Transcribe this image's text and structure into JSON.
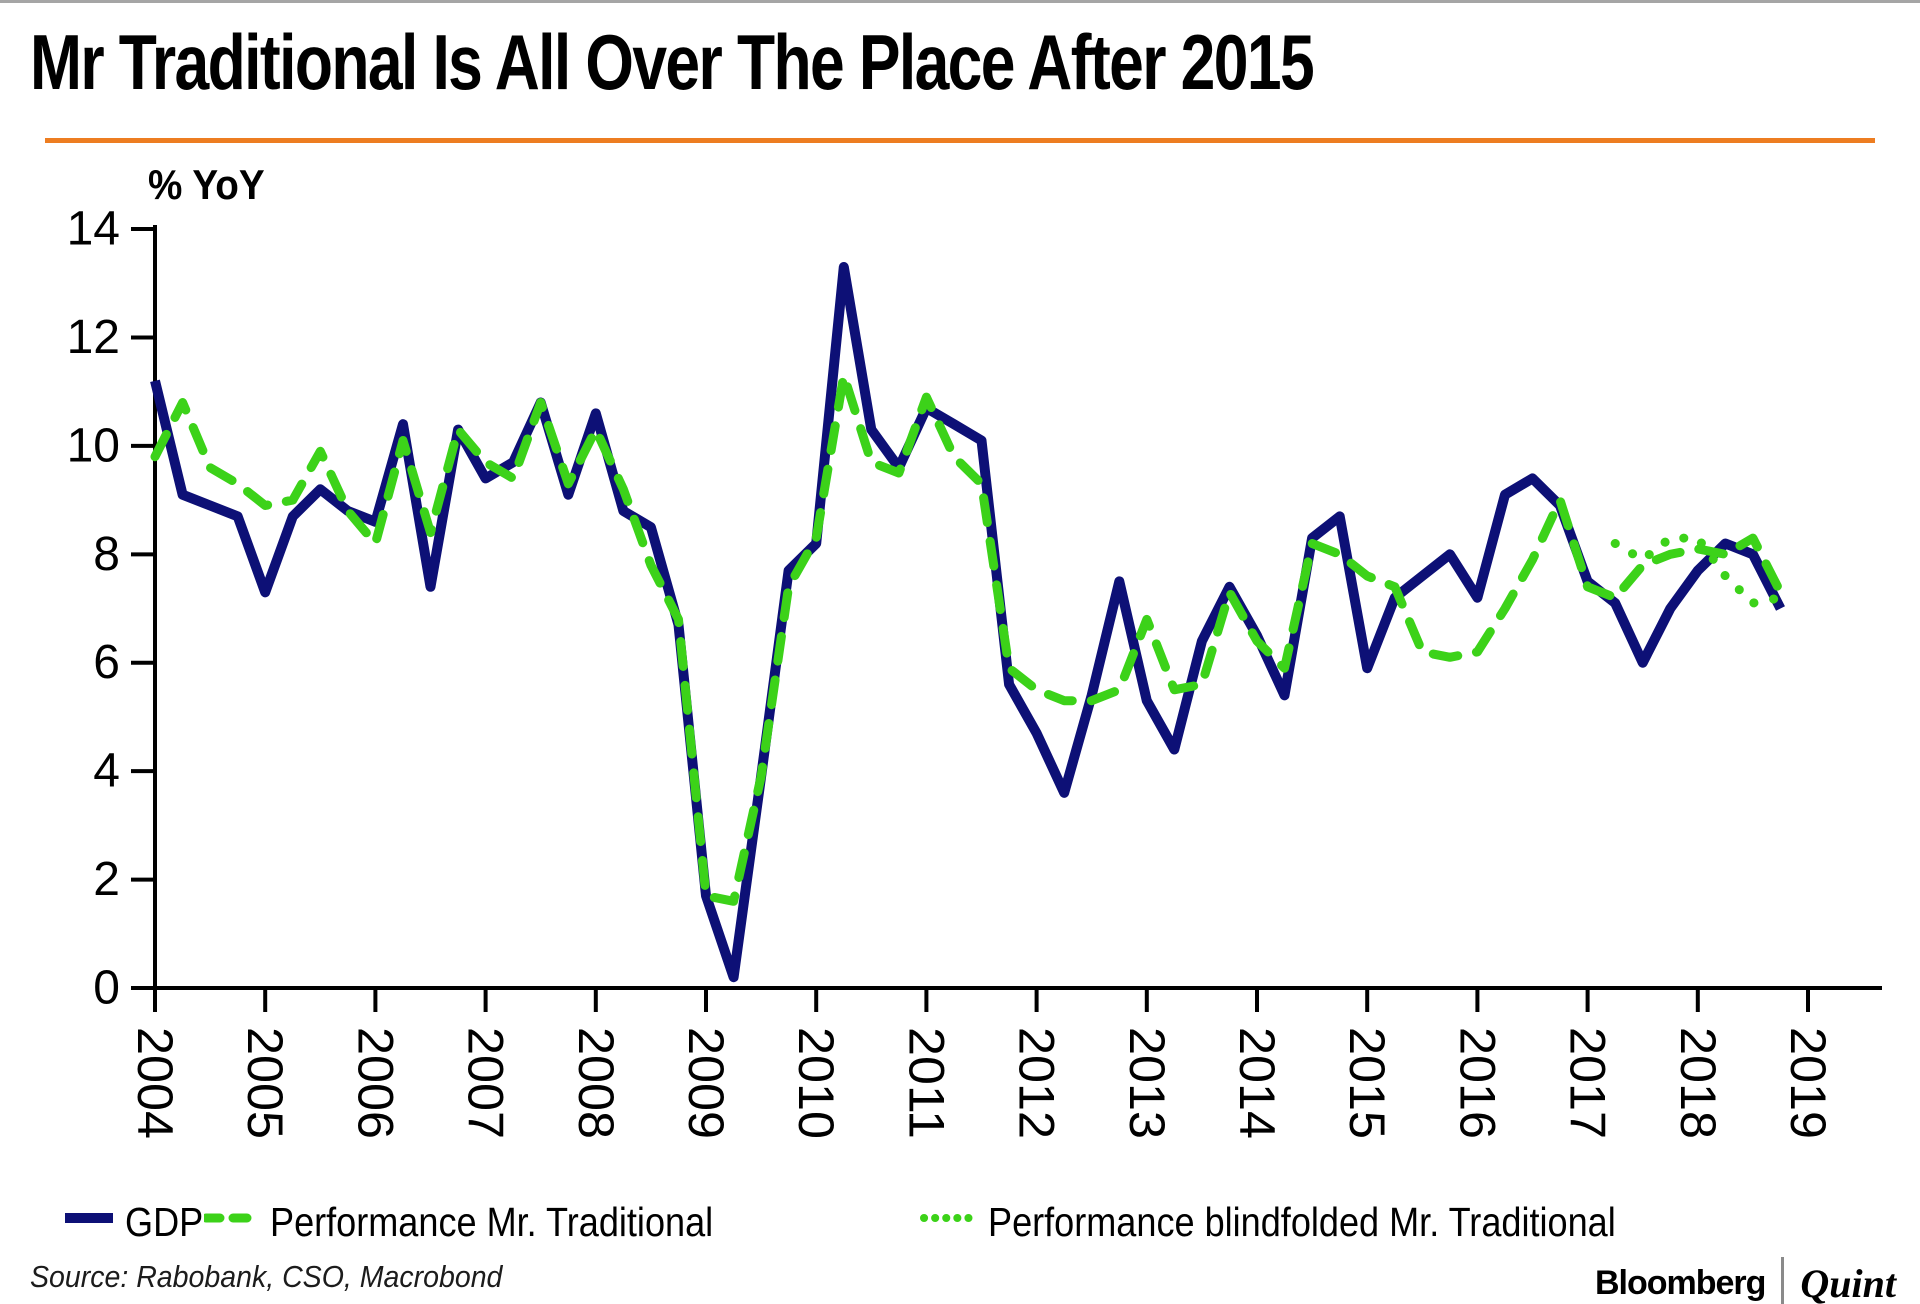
{
  "header": {
    "title": "Mr Traditional Is All Over The Place After 2015"
  },
  "colors": {
    "accent_rule": "#ed7d21",
    "gdp_line": "#0d1076",
    "traditional_line": "#3cd219",
    "axis": "#000000"
  },
  "footer": {
    "source": "Source: Rabobank, CSO, Macrobond",
    "brand_bold": "Bloomberg",
    "brand_serif": "Quint"
  },
  "chart_data": {
    "type": "line",
    "title": "Mr Traditional Is All Over The Place After 2015",
    "xlabel": "",
    "ylabel": "% YoY",
    "grid": false,
    "legend_position": "bottom",
    "frequency": "quarterly",
    "xlim": [
      2004,
      2019.7
    ],
    "ylim": [
      0,
      14
    ],
    "x_axis": {
      "tick_years": [
        2004,
        2005,
        2006,
        2007,
        2008,
        2009,
        2010,
        2011,
        2012,
        2013,
        2014,
        2015,
        2016,
        2017,
        2018,
        2019
      ]
    },
    "y_axis": {
      "min": 0,
      "max": 14,
      "step": 2,
      "ticks": [
        0,
        2,
        4,
        6,
        8,
        10,
        12,
        14
      ]
    },
    "series": [
      {
        "name": "GDP",
        "style": "solid",
        "color": "#0d1076",
        "width": 10,
        "start": "2004Q1",
        "start_index": 0,
        "values": [
          11.2,
          9.1,
          8.9,
          8.7,
          7.3,
          8.7,
          9.2,
          8.8,
          8.6,
          10.4,
          7.4,
          10.3,
          9.4,
          9.7,
          10.8,
          9.1,
          10.6,
          8.8,
          8.5,
          6.7,
          1.7,
          0.2,
          3.9,
          7.7,
          8.2,
          13.3,
          10.3,
          9.6,
          10.7,
          10.4,
          10.1,
          5.6,
          4.7,
          3.6,
          5.4,
          7.5,
          5.3,
          4.4,
          6.4,
          7.4,
          6.5,
          5.4,
          8.3,
          8.7,
          5.9,
          7.2,
          7.6,
          8.0,
          7.2,
          9.1,
          9.4,
          8.9,
          7.5,
          7.1,
          6.0,
          7.0,
          7.7,
          8.2,
          8.0,
          7.0
        ]
      },
      {
        "name": "Performance Mr. Traditional",
        "style": "dashed",
        "color": "#3cd219",
        "width": 9,
        "start": "2004Q1",
        "start_index": 0,
        "values": [
          9.8,
          10.8,
          9.6,
          9.3,
          8.9,
          9.0,
          9.9,
          8.8,
          8.2,
          10.1,
          8.4,
          10.3,
          9.7,
          9.4,
          10.8,
          9.3,
          10.3,
          9.2,
          7.8,
          6.8,
          1.7,
          1.6,
          3.9,
          7.4,
          8.3,
          11.3,
          9.7,
          9.5,
          10.9,
          9.8,
          9.3,
          5.9,
          5.5,
          5.3,
          5.3,
          5.5,
          6.8,
          5.5,
          5.6,
          7.3,
          6.4,
          5.9,
          8.2,
          8.0,
          7.6,
          7.4,
          6.2,
          6.1,
          6.2,
          7.0,
          7.9,
          9.0,
          7.4,
          7.2,
          7.8,
          8.0,
          8.1,
          8.0,
          8.3,
          7.3
        ]
      },
      {
        "name": "Performance blindfolded Mr. Traditional",
        "style": "dotted",
        "color": "#3cd219",
        "width": 9,
        "start": "2017Q2",
        "start_index": 53,
        "values": [
          8.2,
          7.9,
          8.3,
          8.3,
          7.6,
          7.1,
          7.2
        ]
      }
    ]
  }
}
